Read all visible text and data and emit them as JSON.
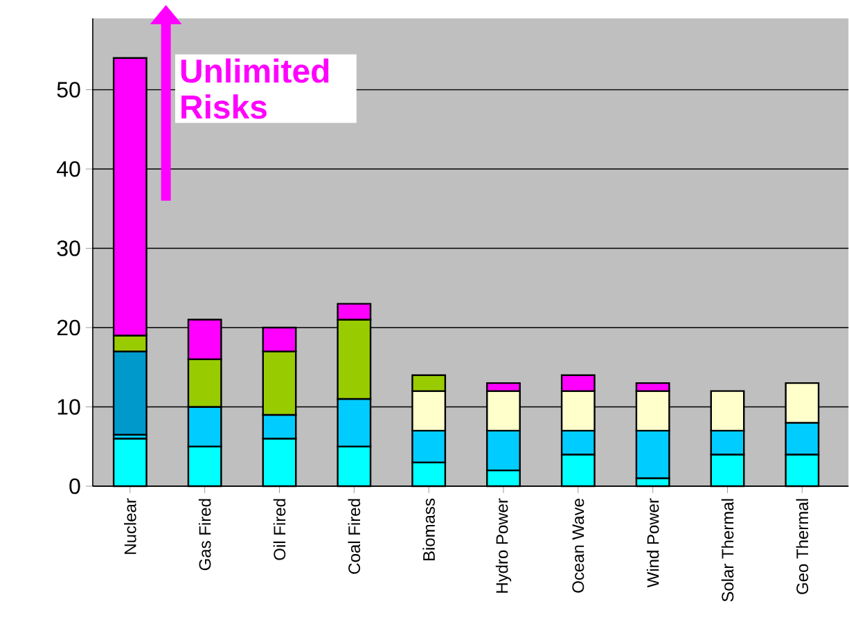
{
  "chart_data": {
    "type": "bar",
    "stacked": true,
    "categories": [
      "Nuclear",
      "Gas Fired",
      "Oil Fired",
      "Coal Fired",
      "Biomass",
      "Hydro Power",
      "Ocean Wave",
      "Wind Power",
      "Solar Thermal",
      "Geo Thermal"
    ],
    "series": [
      {
        "color": "#00ffff",
        "values": [
          6,
          5,
          6,
          5,
          3,
          2,
          4,
          1,
          4,
          4
        ]
      },
      {
        "color": "#00ccff",
        "values": [
          0.5,
          5,
          3,
          6,
          4,
          5,
          3,
          6,
          3,
          4
        ]
      },
      {
        "color": "#0099cc",
        "values": [
          10.5,
          null,
          null,
          null,
          null,
          null,
          null,
          null,
          null,
          null
        ]
      },
      {
        "color": "#ffffcc",
        "values": [
          null,
          null,
          null,
          null,
          5,
          5,
          5,
          5,
          5,
          5
        ]
      },
      {
        "color": "#99cc00",
        "values": [
          2,
          6,
          8,
          10,
          2,
          null,
          null,
          null,
          null,
          null
        ]
      },
      {
        "color": "#ff00ff",
        "values": [
          35,
          5,
          3,
          2,
          null,
          1,
          2,
          1,
          null,
          null
        ]
      }
    ],
    "annotations": [
      "Unlimited Risks"
    ],
    "ylim": [
      0,
      59
    ],
    "yticks": [
      0,
      10,
      20,
      30,
      40,
      50
    ],
    "grid": "y"
  }
}
